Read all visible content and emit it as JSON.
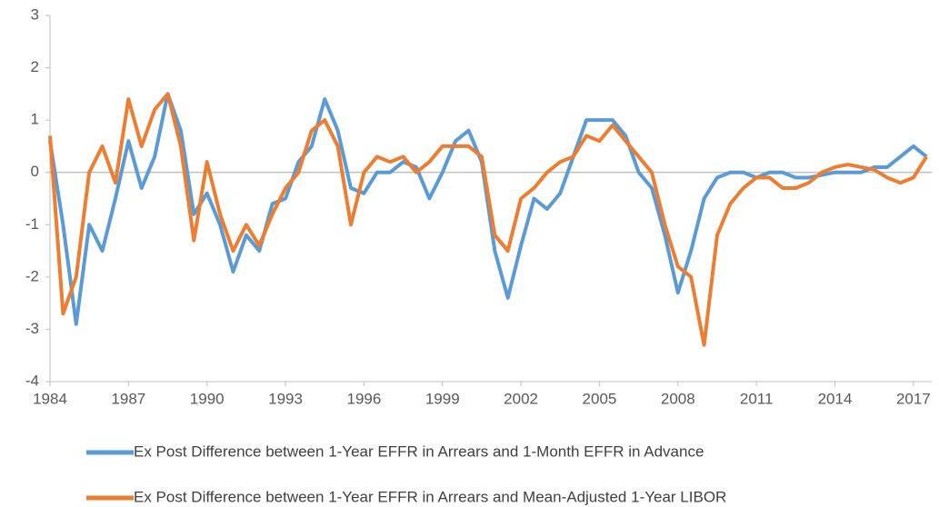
{
  "chart_data": {
    "type": "line",
    "x": [
      1984.0,
      1984.5,
      1985.0,
      1985.5,
      1986.0,
      1986.5,
      1987.0,
      1987.5,
      1988.0,
      1988.5,
      1989.0,
      1989.5,
      1990.0,
      1990.5,
      1991.0,
      1991.5,
      1992.0,
      1992.5,
      1993.0,
      1993.5,
      1994.0,
      1994.5,
      1995.0,
      1995.5,
      1996.0,
      1996.5,
      1997.0,
      1997.5,
      1998.0,
      1998.5,
      1999.0,
      1999.5,
      2000.0,
      2000.5,
      2001.0,
      2001.5,
      2002.0,
      2002.5,
      2003.0,
      2003.5,
      2004.0,
      2004.5,
      2005.0,
      2005.5,
      2006.0,
      2006.5,
      2007.0,
      2007.5,
      2008.0,
      2008.5,
      2009.0,
      2009.5,
      2010.0,
      2010.5,
      2011.0,
      2011.5,
      2012.0,
      2012.5,
      2013.0,
      2013.5,
      2014.0,
      2014.5,
      2015.0,
      2015.5,
      2016.0,
      2016.5,
      2017.0,
      2017.5
    ],
    "series": [
      {
        "name": "Ex Post Difference between 1-Year EFFR in Arrears and 1-Month EFFR in Advance",
        "color": "#5b9bd5",
        "values": [
          0.6,
          -1.0,
          -2.9,
          -1.0,
          -1.5,
          -0.5,
          0.6,
          -0.3,
          0.3,
          1.5,
          0.8,
          -0.8,
          -0.4,
          -1.0,
          -1.9,
          -1.2,
          -1.5,
          -0.6,
          -0.5,
          0.2,
          0.5,
          1.4,
          0.8,
          -0.3,
          -0.4,
          0.0,
          0.0,
          0.2,
          0.1,
          -0.5,
          0.0,
          0.6,
          0.8,
          0.2,
          -1.5,
          -2.4,
          -1.4,
          -0.5,
          -0.7,
          -0.4,
          0.3,
          1.0,
          1.0,
          1.0,
          0.7,
          0.0,
          -0.3,
          -1.2,
          -2.3,
          -1.5,
          -0.5,
          -0.1,
          0.0,
          0.0,
          -0.1,
          0.0,
          0.0,
          -0.1,
          -0.1,
          -0.05,
          0.0,
          0.0,
          0.0,
          0.1,
          0.1,
          0.3,
          0.5,
          0.3
        ]
      },
      {
        "name": "Ex Post Difference between 1-Year EFFR in Arrears and Mean-Adjusted 1-Year LIBOR",
        "color": "#ed7d31",
        "values": [
          0.7,
          -2.7,
          -2.0,
          0.0,
          0.5,
          -0.2,
          1.4,
          0.5,
          1.2,
          1.5,
          0.5,
          -1.3,
          0.2,
          -0.8,
          -1.5,
          -1.0,
          -1.4,
          -0.8,
          -0.3,
          0.0,
          0.8,
          1.0,
          0.5,
          -1.0,
          0.0,
          0.3,
          0.2,
          0.3,
          0.0,
          0.2,
          0.5,
          0.5,
          0.5,
          0.3,
          -1.2,
          -1.5,
          -0.5,
          -0.3,
          0.0,
          0.2,
          0.3,
          0.7,
          0.6,
          0.9,
          0.6,
          0.3,
          0.0,
          -1.0,
          -1.8,
          -2.0,
          -3.3,
          -1.2,
          -0.6,
          -0.3,
          -0.1,
          -0.1,
          -0.3,
          -0.3,
          -0.2,
          0.0,
          0.1,
          0.15,
          0.1,
          0.05,
          -0.1,
          -0.2,
          -0.1,
          0.3
        ]
      }
    ],
    "xlim": [
      1984,
      2017.7
    ],
    "xticks": [
      1984,
      1987,
      1990,
      1993,
      1996,
      1999,
      2002,
      2005,
      2008,
      2011,
      2014,
      2017
    ],
    "ylim": [
      -4,
      3
    ],
    "yticks": [
      -4,
      -3,
      -2,
      -1,
      0,
      1,
      2,
      3
    ],
    "legend": "bottom"
  }
}
